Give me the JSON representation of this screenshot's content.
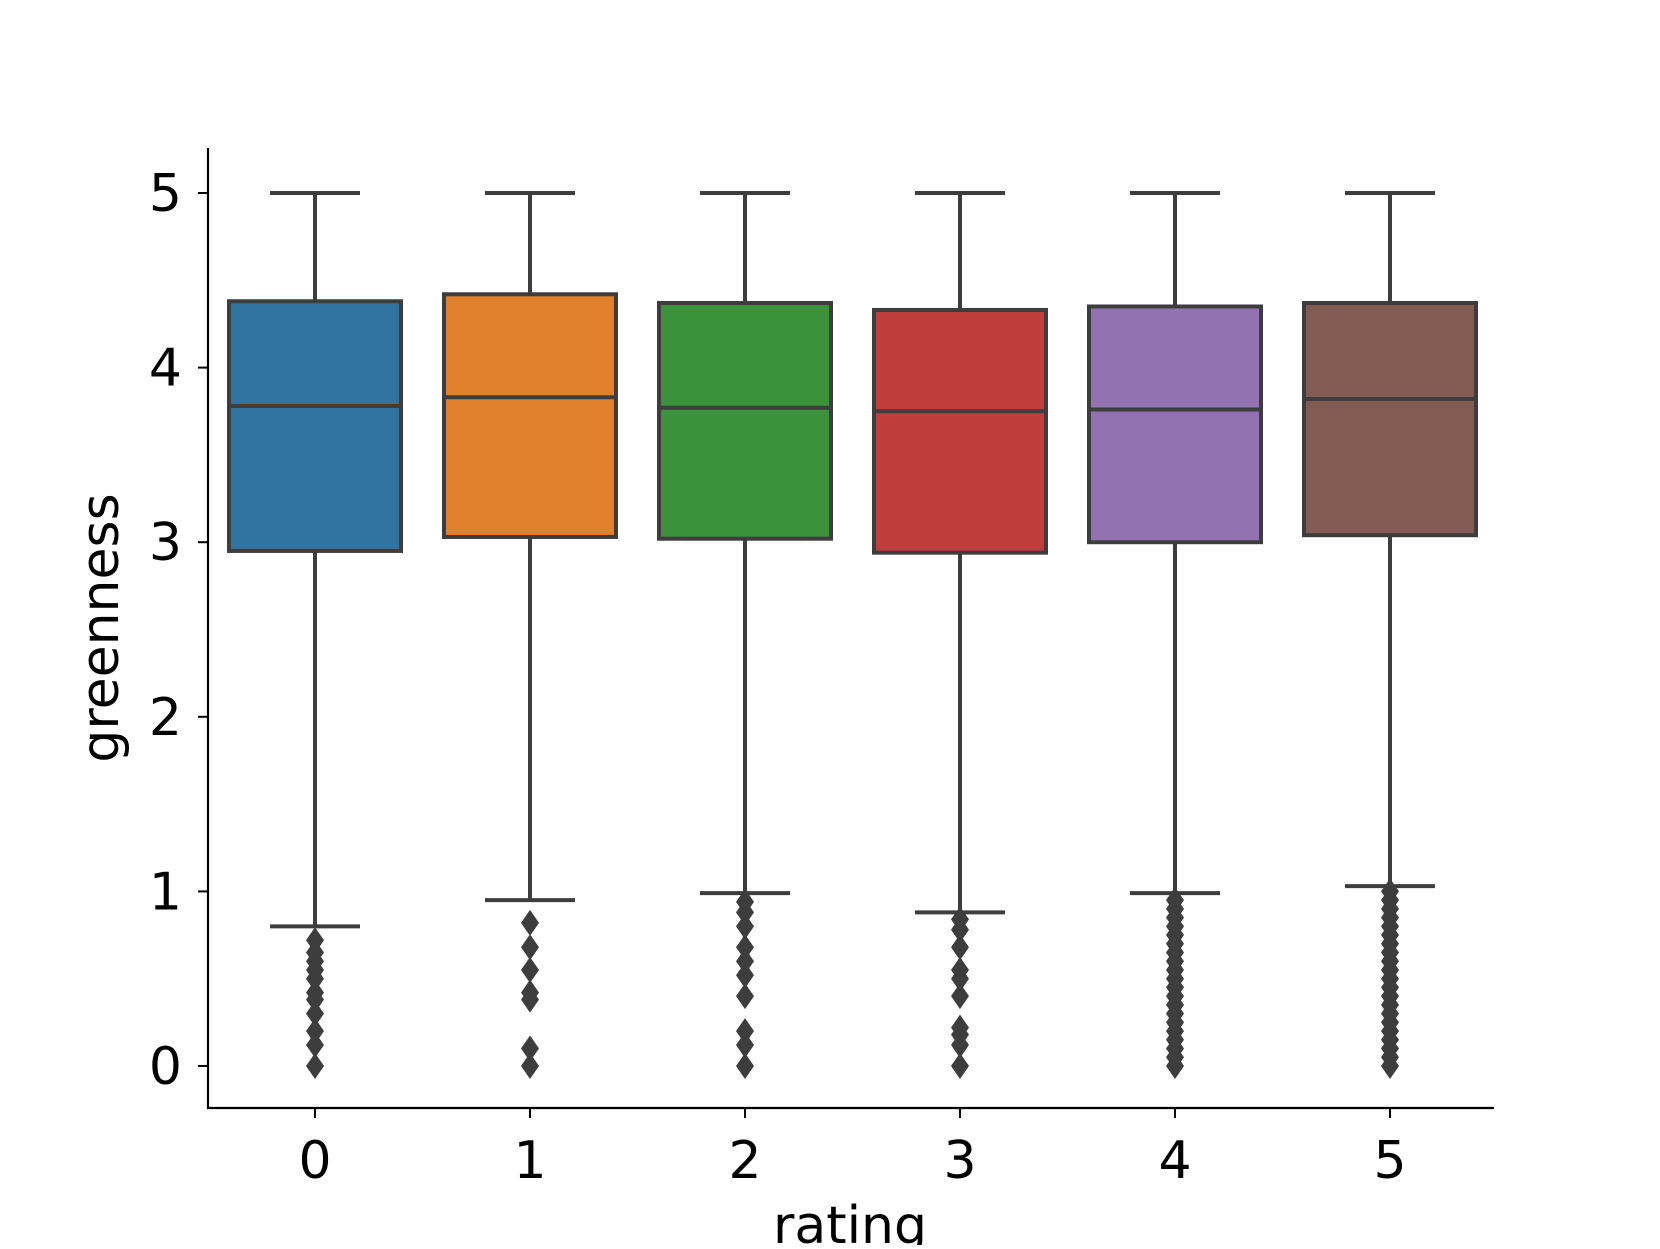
{
  "chart_data": {
    "type": "box",
    "title": "",
    "xlabel": "rating",
    "ylabel": "greenness",
    "ylim": [
      -0.25,
      5.25
    ],
    "yticks": [
      0,
      1,
      2,
      3,
      4,
      5
    ],
    "grid": false,
    "categories": [
      "0",
      "1",
      "2",
      "3",
      "4",
      "5"
    ],
    "series": [
      {
        "category": "0",
        "color": "#3274a1",
        "whisker_low": 0.8,
        "q1": 2.95,
        "median": 3.78,
        "q3": 4.38,
        "whisker_high": 5.0,
        "outliers": [
          0.72,
          0.65,
          0.6,
          0.55,
          0.5,
          0.42,
          0.38,
          0.3,
          0.2,
          0.12,
          0.0
        ]
      },
      {
        "category": "1",
        "color": "#e1812c",
        "whisker_low": 0.95,
        "q1": 3.03,
        "median": 3.83,
        "q3": 4.42,
        "whisker_high": 5.0,
        "outliers": [
          0.82,
          0.68,
          0.55,
          0.42,
          0.38,
          0.1,
          0.0
        ]
      },
      {
        "category": "2",
        "color": "#3a923a",
        "whisker_low": 0.99,
        "q1": 3.02,
        "median": 3.77,
        "q3": 4.37,
        "whisker_high": 5.0,
        "outliers": [
          0.94,
          0.88,
          0.8,
          0.68,
          0.6,
          0.52,
          0.4,
          0.2,
          0.12,
          0.0
        ]
      },
      {
        "category": "3",
        "color": "#c03d3e",
        "whisker_low": 0.88,
        "q1": 2.94,
        "median": 3.75,
        "q3": 4.33,
        "whisker_high": 5.0,
        "outliers": [
          0.84,
          0.78,
          0.68,
          0.55,
          0.5,
          0.4,
          0.22,
          0.18,
          0.12,
          0.0
        ]
      },
      {
        "category": "4",
        "color": "#9372b2",
        "whisker_low": 0.99,
        "q1": 3.0,
        "median": 3.76,
        "q3": 4.35,
        "whisker_high": 5.0,
        "outliers": [
          0.95,
          0.9,
          0.85,
          0.8,
          0.75,
          0.7,
          0.65,
          0.6,
          0.55,
          0.5,
          0.45,
          0.4,
          0.35,
          0.3,
          0.25,
          0.2,
          0.15,
          0.1,
          0.05,
          0.0
        ]
      },
      {
        "category": "5",
        "color": "#845b53",
        "whisker_low": 1.03,
        "q1": 3.04,
        "median": 3.82,
        "q3": 4.37,
        "whisker_high": 5.0,
        "outliers": [
          1.0,
          0.95,
          0.9,
          0.85,
          0.8,
          0.75,
          0.7,
          0.65,
          0.6,
          0.55,
          0.5,
          0.45,
          0.4,
          0.35,
          0.3,
          0.25,
          0.2,
          0.15,
          0.1,
          0.05,
          0.0
        ]
      }
    ]
  }
}
